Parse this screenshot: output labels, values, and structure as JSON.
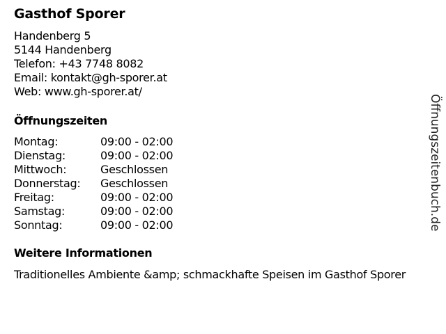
{
  "name": "Gasthof Sporer",
  "address": {
    "street": "Handenberg 5",
    "city": "5144 Handenberg",
    "phone": "Telefon: +43 7748 8082",
    "email": "Email: kontakt@gh-sporer.at",
    "web": "Web: www.gh-sporer.at/"
  },
  "hours_heading": "Öffnungszeiten",
  "hours": [
    {
      "day": "Montag:",
      "time": "09:00 - 02:00"
    },
    {
      "day": "Dienstag:",
      "time": "09:00 - 02:00"
    },
    {
      "day": "Mittwoch:",
      "time": "Geschlossen"
    },
    {
      "day": "Donnerstag:",
      "time": "Geschlossen"
    },
    {
      "day": "Freitag:",
      "time": "09:00 - 02:00"
    },
    {
      "day": "Samstag:",
      "time": "09:00 - 02:00"
    },
    {
      "day": "Sonntag:",
      "time": "09:00 - 02:00"
    }
  ],
  "info_heading": "Weitere Informationen",
  "info_text": "Traditionelles Ambiente &amp; schmackhafte Speisen im Gasthof Sporer",
  "watermark": "Öffnungszeitenbuch.de"
}
